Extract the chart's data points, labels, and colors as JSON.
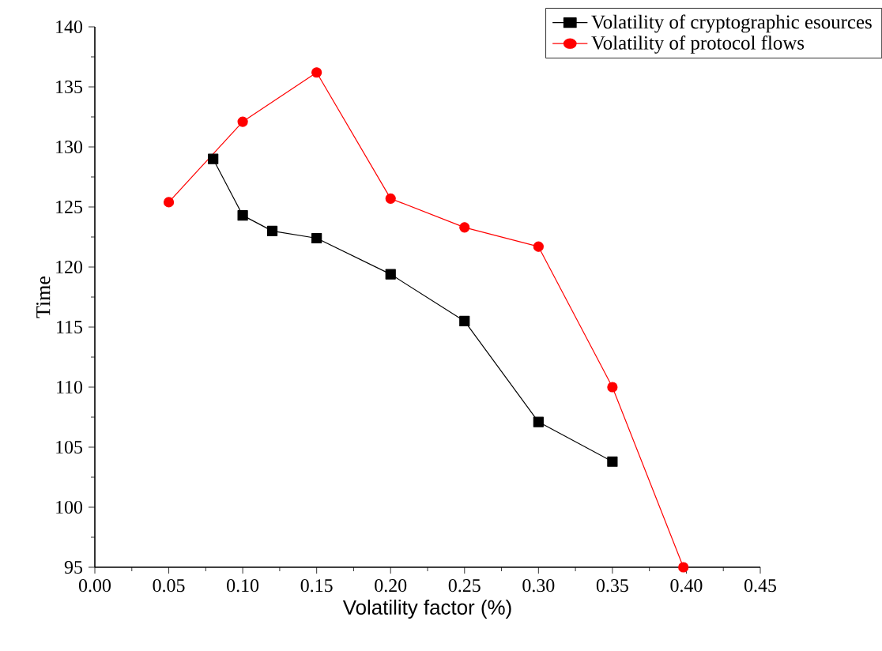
{
  "chart_data": {
    "type": "line",
    "xlabel": "Volatility factor (%)",
    "ylabel": "Time",
    "xlim": [
      0,
      0.45
    ],
    "ylim": [
      95,
      140
    ],
    "xticks": [
      {
        "value": 0,
        "label": "0.00"
      },
      {
        "value": 0.05,
        "label": "0.05"
      },
      {
        "value": 0.1,
        "label": "0.10"
      },
      {
        "value": 0.15,
        "label": "0.15"
      },
      {
        "value": 0.2,
        "label": "0.20"
      },
      {
        "value": 0.25,
        "label": "0.25"
      },
      {
        "value": 0.3,
        "label": "0.30"
      },
      {
        "value": 0.35,
        "label": "0.35"
      },
      {
        "value": 0.4,
        "label": "0.40"
      },
      {
        "value": 0.45,
        "label": "0.45"
      }
    ],
    "yticks": [
      95,
      100,
      105,
      110,
      115,
      120,
      125,
      130,
      135,
      140
    ],
    "legend": "top right",
    "grid": false,
    "series": [
      {
        "name": "Volatility of cryptographic esources",
        "color": "#000000",
        "marker": "square",
        "x": [
          0.08,
          0.1,
          0.12,
          0.15,
          0.2,
          0.25,
          0.3,
          0.35
        ],
        "values": [
          129.0,
          124.3,
          123.0,
          122.4,
          119.4,
          115.5,
          107.1,
          103.8
        ]
      },
      {
        "name": "Volatility of protocol flows",
        "color": "#ff0000",
        "marker": "circle",
        "x": [
          0.05,
          0.1,
          0.15,
          0.2,
          0.25,
          0.3,
          0.35,
          0.398
        ],
        "values": [
          125.4,
          132.1,
          136.2,
          125.7,
          123.3,
          121.7,
          110.0,
          95
        ]
      }
    ]
  }
}
